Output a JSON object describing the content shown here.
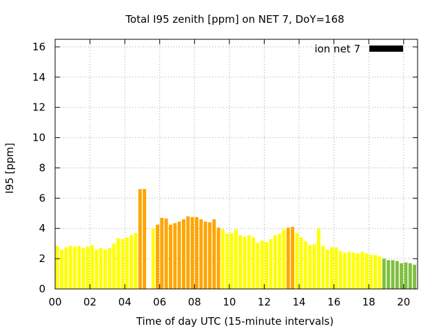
{
  "chart_data": {
    "type": "bar",
    "title": "Total I95 zenith [ppm] on NET 7, DoY=168",
    "xlabel": "Time of day UTC (15-minute intervals)",
    "ylabel": "I95 [ppm]",
    "xlim": [
      0,
      20.8
    ],
    "ylim": [
      0,
      16.5
    ],
    "x_ticks": [
      "00",
      "02",
      "04",
      "06",
      "08",
      "10",
      "12",
      "14",
      "16",
      "18",
      "20"
    ],
    "x_tick_values": [
      0,
      2,
      4,
      6,
      8,
      10,
      12,
      14,
      16,
      18,
      20
    ],
    "y_ticks": [
      0,
      2,
      4,
      6,
      8,
      10,
      12,
      14,
      16
    ],
    "grid": true,
    "legend_position": "top-right",
    "series": [
      {
        "name": "ion net 7",
        "legend_color": "#000000",
        "x": [
          0.125,
          0.375,
          0.625,
          0.875,
          1.125,
          1.375,
          1.625,
          1.875,
          2.125,
          2.375,
          2.625,
          2.875,
          3.125,
          3.375,
          3.625,
          3.875,
          4.125,
          4.375,
          4.625,
          4.875,
          5.125,
          5.375,
          5.625,
          5.875,
          6.125,
          6.375,
          6.625,
          6.875,
          7.125,
          7.375,
          7.625,
          7.875,
          8.125,
          8.375,
          8.625,
          8.875,
          9.125,
          9.375,
          9.625,
          9.875,
          10.125,
          10.375,
          10.625,
          10.875,
          11.125,
          11.375,
          11.625,
          11.875,
          12.125,
          12.375,
          12.625,
          12.875,
          13.125,
          13.375,
          13.625,
          13.875,
          14.125,
          14.375,
          14.625,
          14.875,
          15.125,
          15.375,
          15.625,
          15.875,
          16.125,
          16.375,
          16.625,
          16.875,
          17.125,
          17.375,
          17.625,
          17.875,
          18.125,
          18.375,
          18.625,
          18.875,
          19.125,
          19.375,
          19.625,
          19.875,
          20.125,
          20.375,
          20.625
        ],
        "values": [
          2.85,
          2.6,
          2.75,
          2.85,
          2.8,
          2.85,
          2.7,
          2.8,
          2.9,
          2.6,
          2.7,
          2.6,
          2.7,
          3.0,
          3.35,
          3.3,
          3.4,
          3.55,
          3.7,
          6.6,
          6.6,
          0,
          4.0,
          4.25,
          4.7,
          4.65,
          4.25,
          4.35,
          4.45,
          4.6,
          4.8,
          4.75,
          4.75,
          4.6,
          4.45,
          4.4,
          4.6,
          4.05,
          3.95,
          3.65,
          3.7,
          3.95,
          3.55,
          3.45,
          3.55,
          3.4,
          3.05,
          3.2,
          3.1,
          3.3,
          3.55,
          3.65,
          3.95,
          4.05,
          4.1,
          3.7,
          3.4,
          3.15,
          2.9,
          2.95,
          4.0,
          2.85,
          2.6,
          2.75,
          2.75,
          2.5,
          2.4,
          2.45,
          2.4,
          2.35,
          2.45,
          2.35,
          2.25,
          2.25,
          2.15,
          2.0,
          1.9,
          1.9,
          1.85,
          1.7,
          1.75,
          1.7,
          1.6
        ],
        "colors": [
          "#ffff00",
          "#ffff00",
          "#ffff00",
          "#ffff00",
          "#ffff00",
          "#ffff00",
          "#ffff00",
          "#ffff00",
          "#ffff00",
          "#ffff00",
          "#ffff00",
          "#ffff00",
          "#ffff00",
          "#ffff00",
          "#ffff00",
          "#ffff00",
          "#ffff00",
          "#ffff00",
          "#ffff00",
          "#ffa500",
          "#ffa500",
          "#ffff00",
          "#ffff00",
          "#ffa500",
          "#ffa500",
          "#ffa500",
          "#ffa500",
          "#ffa500",
          "#ffa500",
          "#ffa500",
          "#ffa500",
          "#ffa500",
          "#ffa500",
          "#ffa500",
          "#ffa500",
          "#ffa500",
          "#ffa500",
          "#ffa500",
          "#ffff00",
          "#ffff00",
          "#ffff00",
          "#ffff00",
          "#ffff00",
          "#ffff00",
          "#ffff00",
          "#ffff00",
          "#ffff00",
          "#ffff00",
          "#ffff00",
          "#ffff00",
          "#ffff00",
          "#ffff00",
          "#ffff00",
          "#ffa500",
          "#ffa500",
          "#ffff00",
          "#ffff00",
          "#ffff00",
          "#ffff00",
          "#ffff00",
          "#ffff00",
          "#ffff00",
          "#ffff00",
          "#ffff00",
          "#ffff00",
          "#ffff00",
          "#ffff00",
          "#ffff00",
          "#ffff00",
          "#ffff00",
          "#ffff00",
          "#ffff00",
          "#ffff00",
          "#ffff00",
          "#ffff00",
          "#7fbf3f",
          "#7fbf3f",
          "#7fbf3f",
          "#7fbf3f",
          "#7fbf3f",
          "#7fbf3f",
          "#7fbf3f",
          "#7fbf3f"
        ]
      }
    ]
  }
}
